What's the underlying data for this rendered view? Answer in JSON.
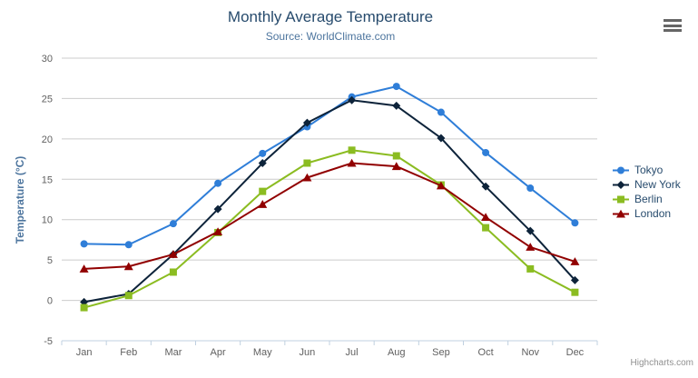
{
  "credits": {
    "label": "Highcharts.com"
  },
  "context_menu": {
    "icon": "hamburger-icon"
  },
  "chart_data": {
    "type": "line",
    "title": "Monthly Average Temperature",
    "subtitle": "Source: WorldClimate.com",
    "categories": [
      "Jan",
      "Feb",
      "Mar",
      "Apr",
      "May",
      "Jun",
      "Jul",
      "Aug",
      "Sep",
      "Oct",
      "Nov",
      "Dec"
    ],
    "series": [
      {
        "name": "Tokyo",
        "color": "#2f7ed8",
        "marker": "circle",
        "values": [
          7.0,
          6.9,
          9.5,
          14.5,
          18.2,
          21.5,
          25.2,
          26.5,
          23.3,
          18.3,
          13.9,
          9.6
        ]
      },
      {
        "name": "New York",
        "color": "#0d233a",
        "marker": "diamond",
        "values": [
          -0.2,
          0.8,
          5.7,
          11.3,
          17.0,
          22.0,
          24.8,
          24.1,
          20.1,
          14.1,
          8.6,
          2.5
        ]
      },
      {
        "name": "Berlin",
        "color": "#8bbc21",
        "marker": "square",
        "values": [
          -0.9,
          0.6,
          3.5,
          8.4,
          13.5,
          17.0,
          18.6,
          17.9,
          14.3,
          9.0,
          3.9,
          1.0
        ]
      },
      {
        "name": "London",
        "color": "#910000",
        "marker": "triangle",
        "values": [
          3.9,
          4.2,
          5.7,
          8.5,
          11.9,
          15.2,
          17.0,
          16.6,
          14.2,
          10.3,
          6.6,
          4.8
        ]
      }
    ],
    "xlabel": "",
    "ylabel": "Temperature (°C)",
    "ylim": [
      -5,
      30
    ],
    "yticks": [
      -5,
      0,
      5,
      10,
      15,
      20,
      25,
      30
    ],
    "grid": true,
    "legend_position": "right",
    "grid_color": "#cccccc",
    "axis_line_color": "#c0d0e0",
    "tick_label_color": "#606060",
    "axis_title_color": "#4d759e",
    "legend_text_color": "#274b6d"
  }
}
